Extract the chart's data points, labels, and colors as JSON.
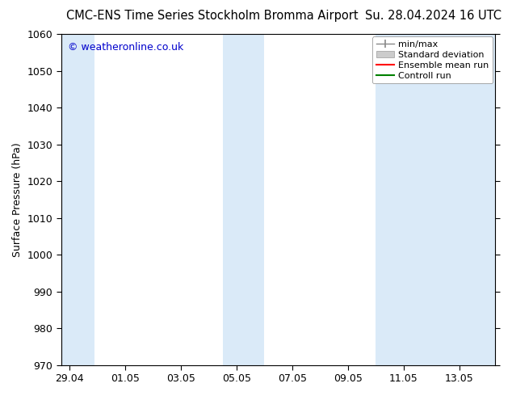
{
  "title_left": "CMC-ENS Time Series Stockholm Bromma Airport",
  "title_right": "Su. 28.04.2024 16 UTC",
  "ylabel": "Surface Pressure (hPa)",
  "ylim": [
    970,
    1060
  ],
  "yticks": [
    970,
    980,
    990,
    1000,
    1010,
    1020,
    1030,
    1040,
    1050,
    1060
  ],
  "xtick_labels": [
    "29.04",
    "01.05",
    "03.05",
    "05.05",
    "07.05",
    "09.05",
    "11.05",
    "13.05"
  ],
  "xtick_positions": [
    0,
    2,
    4,
    6,
    8,
    10,
    12,
    14
  ],
  "xlim": [
    -0.3,
    15.3
  ],
  "watermark": "© weatheronline.co.uk",
  "watermark_color": "#0000cc",
  "background_color": "#ffffff",
  "plot_bg_color": "#ffffff",
  "shaded_bands": [
    {
      "x_start": -0.3,
      "x_end": 0.9,
      "color": "#daeaf8"
    },
    {
      "x_start": 5.5,
      "x_end": 7.0,
      "color": "#daeaf8"
    },
    {
      "x_start": 11.0,
      "x_end": 15.3,
      "color": "#daeaf8"
    }
  ],
  "legend_items": [
    {
      "label": "min/max",
      "color": "#aaaaaa",
      "style": "errorbar"
    },
    {
      "label": "Standard deviation",
      "color": "#cccccc",
      "style": "bar"
    },
    {
      "label": "Ensemble mean run",
      "color": "#ff0000",
      "style": "line"
    },
    {
      "label": "Controll run",
      "color": "#008000",
      "style": "line"
    }
  ],
  "title_fontsize": 10.5,
  "tick_fontsize": 9,
  "ylabel_fontsize": 9,
  "watermark_fontsize": 9,
  "legend_fontsize": 8
}
